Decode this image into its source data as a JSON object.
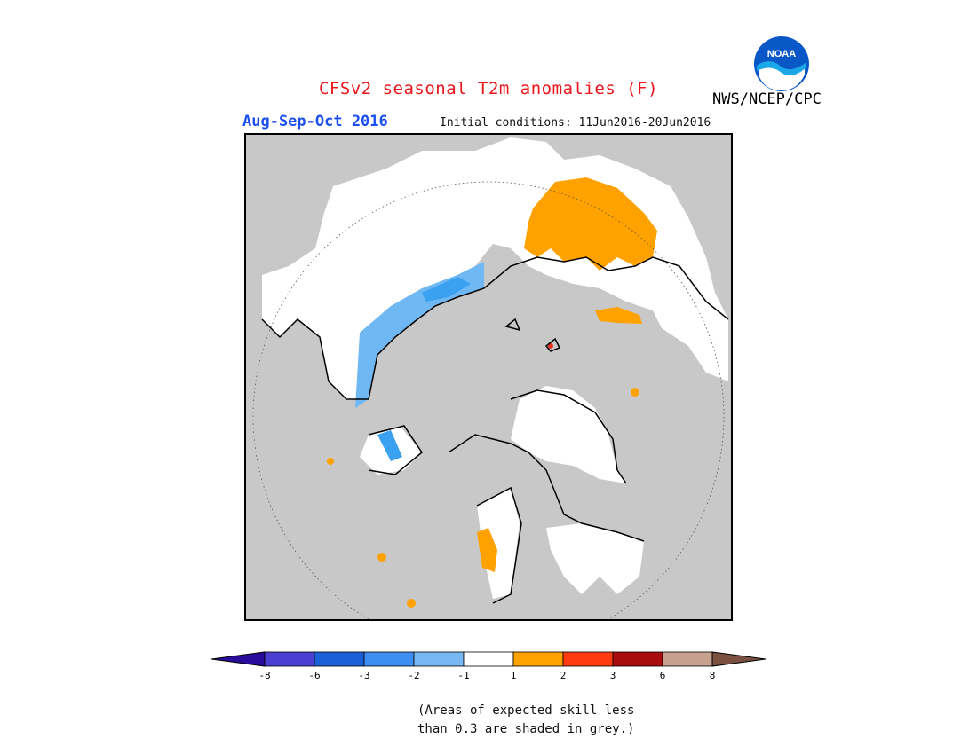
{
  "header": {
    "title": "CFSv2 seasonal T2m anomalies (F)",
    "season": "Aug-Sep-Oct 2016",
    "initial_conditions": "Initial conditions: 11Jun2016-20Jun2016",
    "org": "NWS/NCEP/CPC",
    "logo_text": "NOAA"
  },
  "colors": {
    "title": "#e8151b",
    "season": "#1c4ff0",
    "grey_mask": "#c8c8c8",
    "orange": "#ffa200",
    "red": "#e83020",
    "blue": "#3aa0f0",
    "light_blue": "#6fb8f3"
  },
  "colorbar": {
    "labels": [
      "-8",
      "-6",
      "-3",
      "-2",
      "-1",
      "1",
      "2",
      "3",
      "6",
      "8"
    ],
    "colors": [
      "#2a0c9a",
      "#4a3fd0",
      "#1a5fd6",
      "#3d8ef0",
      "#78b8f2",
      "#ffffff",
      "#ffa200",
      "#ff3a10",
      "#a80c0c",
      "#c8a090",
      "#7a5040"
    ]
  },
  "note": {
    "line1": "(Areas of expected skill less",
    "line2": "than 0.3 are shaded in grey.)"
  }
}
